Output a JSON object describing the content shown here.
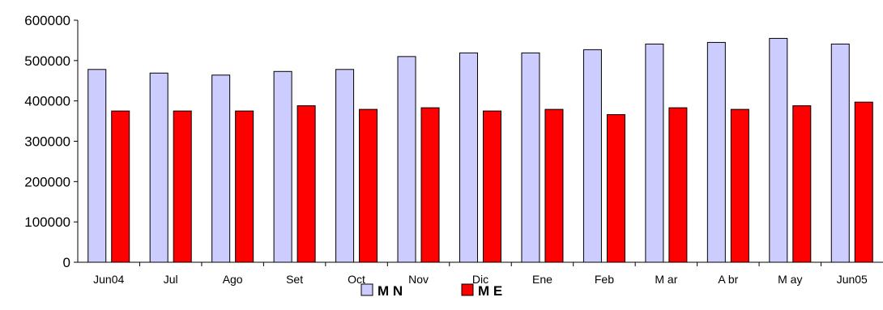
{
  "chart_data": {
    "type": "bar",
    "categories": [
      "Jun04",
      "Jul",
      "Ago",
      "Set",
      "Oct",
      "Nov",
      "Dic",
      "Ene",
      "Feb",
      "M ar",
      "A br",
      "M ay",
      "Jun05"
    ],
    "series": [
      {
        "name": "M N",
        "color": "#ccccff",
        "values": [
          478000,
          469000,
          464000,
          473000,
          478000,
          510000,
          519000,
          519000,
          527000,
          541000,
          545000,
          555000,
          541000
        ]
      },
      {
        "name": "M E",
        "color": "#ff0000",
        "values": [
          375000,
          375000,
          375000,
          388000,
          379000,
          383000,
          375000,
          379000,
          366000,
          383000,
          379000,
          388000,
          397000
        ]
      }
    ],
    "ylim": [
      0,
      600000
    ],
    "yticks": [
      "0",
      "100000",
      "200000",
      "300000",
      "400000",
      "500000",
      "600000"
    ],
    "title": "",
    "xlabel": "",
    "ylabel": "",
    "legend_position": "bottom",
    "grid": false
  }
}
